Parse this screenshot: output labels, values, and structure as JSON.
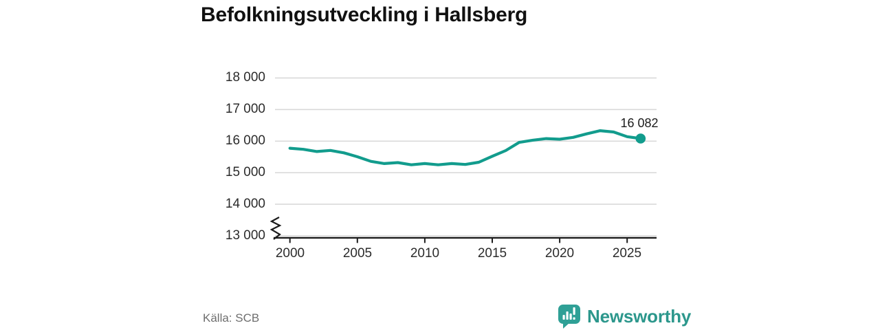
{
  "chart_data": {
    "type": "line",
    "title": "Befolkningsutveckling i Hallsberg",
    "x": [
      2000,
      2001,
      2002,
      2003,
      2004,
      2005,
      2006,
      2007,
      2008,
      2009,
      2010,
      2011,
      2012,
      2013,
      2014,
      2015,
      2016,
      2017,
      2018,
      2019,
      2020,
      2021,
      2022,
      2023,
      2024,
      2025,
      2026
    ],
    "series": [
      {
        "name": "Befolkning",
        "color": "#129c8d",
        "values": [
          15775,
          15740,
          15670,
          15705,
          15630,
          15505,
          15360,
          15290,
          15320,
          15250,
          15290,
          15250,
          15290,
          15260,
          15330,
          15520,
          15700,
          15960,
          16030,
          16080,
          16060,
          16120,
          16230,
          16330,
          16290,
          16140,
          16082
        ]
      }
    ],
    "end_label": "16 082",
    "end_value": 16082,
    "x_ticks": [
      2000,
      2005,
      2010,
      2015,
      2020,
      2025
    ],
    "x_tick_labels": [
      "2000",
      "2005",
      "2010",
      "2015",
      "2020",
      "2025"
    ],
    "y_ticks": [
      18000,
      17000,
      16000,
      15000,
      14000,
      13000
    ],
    "y_tick_labels": [
      "18 000",
      "17 000",
      "16 000",
      "15 000",
      "14 000",
      "13 000"
    ],
    "ylim": [
      13000,
      18000
    ],
    "xlim": [
      2000,
      2027.3
    ],
    "axis_break_at_bottom": true,
    "grid": "horizontal-only",
    "legend": "none"
  },
  "footer": {
    "source": "Källa: SCB",
    "brand": "Newsworthy"
  },
  "colors": {
    "line": "#129c8d",
    "dot": "#129c8d",
    "brand_text": "#2c978c",
    "brand_bubble": "#2fa096",
    "grid": "#d9d9d9",
    "axis": "#1b1b1b"
  }
}
